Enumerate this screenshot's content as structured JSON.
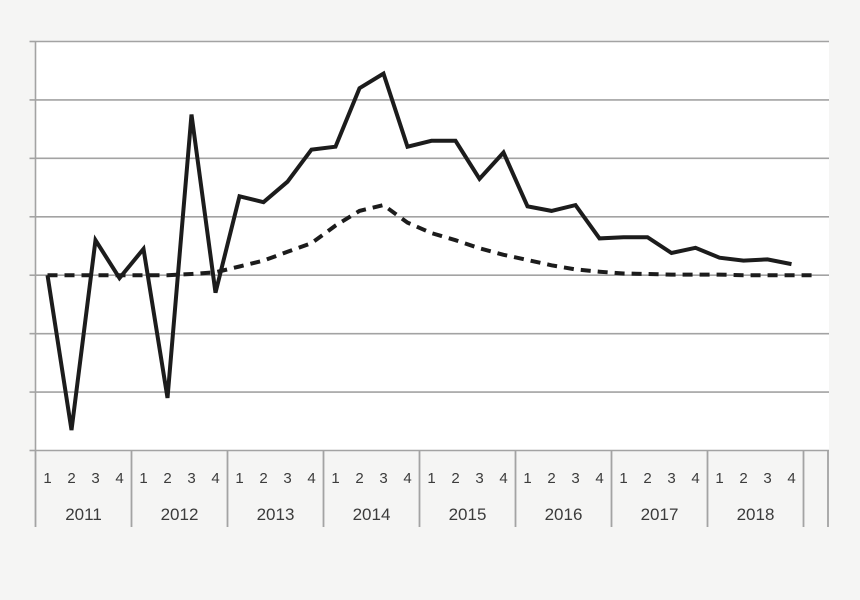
{
  "page": {
    "background_color": "#f5f5f4",
    "plot_background_color": "#ffffff",
    "gridline_color": "#a3a3a3",
    "line_color": "#1c1c1c",
    "label_color": "#3b3b3b"
  },
  "chart_data": {
    "type": "line",
    "title": "",
    "xlabel": "",
    "ylabel": "",
    "x_axis": {
      "years": [
        "2011",
        "2012",
        "2013",
        "2014",
        "2015",
        "2016",
        "2017",
        "2018"
      ],
      "quarter_labels": [
        "1",
        "2",
        "3",
        "4"
      ]
    },
    "y_axis": {
      "ylim": [
        -3,
        4
      ],
      "gridline_step": 1,
      "tick_labels_visible": false,
      "baseline_value": 0
    },
    "grid": "horizontal-only",
    "legend": "none",
    "series": [
      {
        "name": "solid",
        "style": "solid",
        "color": "#1c1c1c",
        "values": [
          0.0,
          -2.65,
          0.6,
          -0.05,
          0.45,
          -2.1,
          2.75,
          -0.3,
          1.35,
          1.25,
          1.6,
          2.15,
          2.2,
          3.2,
          3.45,
          2.2,
          2.3,
          2.3,
          1.65,
          2.1,
          1.18,
          1.1,
          1.2,
          0.63,
          0.65,
          0.65,
          0.38,
          0.47,
          0.3,
          0.25,
          0.27,
          0.19
        ]
      },
      {
        "name": "dashed",
        "style": "dashed",
        "color": "#1c1c1c",
        "values": [
          0.0,
          0.0,
          0.0,
          0.0,
          0.0,
          0.0,
          0.02,
          0.05,
          0.15,
          0.25,
          0.4,
          0.55,
          0.85,
          1.1,
          1.2,
          0.9,
          0.72,
          0.6,
          0.46,
          0.35,
          0.26,
          0.17,
          0.1,
          0.06,
          0.03,
          0.02,
          0.01,
          0.01,
          0.01,
          0.0,
          0.0,
          0.0
        ],
        "extends_to_right": true
      }
    ]
  }
}
